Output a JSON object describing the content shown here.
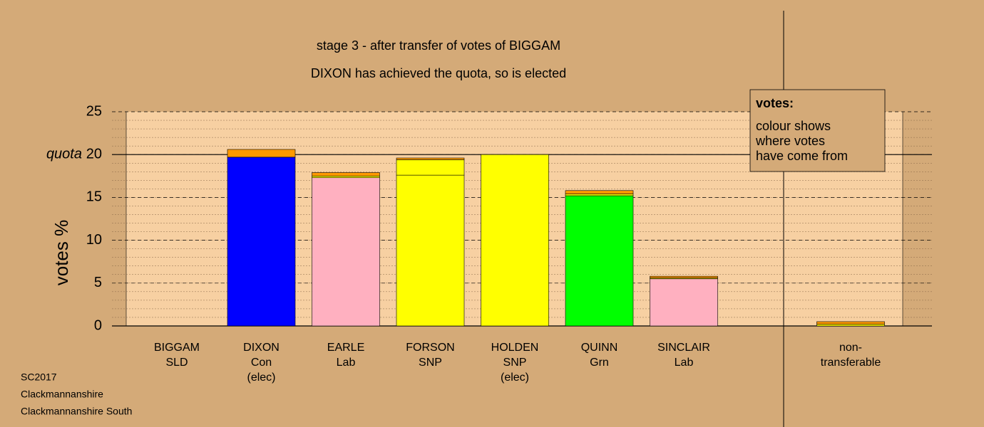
{
  "chart_data": {
    "type": "stacked-bar",
    "title": "stage 3 - after transfer of votes of BIGGAM",
    "subtitle": "DIXON has achieved the quota, so is elected",
    "y_label": "votes %",
    "categories": [
      [
        "BIGGAM",
        "SLD"
      ],
      [
        "DIXON",
        "Con",
        "(elec)"
      ],
      [
        "EARLE",
        "Lab"
      ],
      [
        "FORSON",
        "SNP"
      ],
      [
        "HOLDEN",
        "SNP",
        "(elec)"
      ],
      [
        "QUINN",
        "Grn"
      ],
      [
        "SINCLAIR",
        "Lab"
      ],
      [
        "non-",
        "transferable"
      ]
    ],
    "series": [
      {
        "colors": [
          "#ffa500",
          "#0000ff",
          "#ffb0c0",
          "#ffff00",
          "#ffff00",
          "#00ff00",
          "#ffb0c0",
          "#ffff00"
        ],
        "values": [
          0,
          19.7,
          17.3,
          17.6,
          20.0,
          15.2,
          5.5,
          0
        ]
      },
      {
        "color": "#ffff00",
        "values": [
          0,
          0,
          0.2,
          1.8,
          0,
          0.2,
          0.1,
          0.2
        ]
      },
      {
        "color": "#ff9900",
        "values": [
          0,
          0.9,
          0.4,
          0.2,
          0,
          0.4,
          0.2,
          0.3
        ]
      }
    ],
    "ylim": [
      0,
      25
    ],
    "yticks": [
      0,
      5,
      10,
      15,
      20,
      25
    ],
    "minor_step": 1,
    "quota": {
      "value": 20,
      "label": "quota"
    },
    "legend": {
      "title": "votes:",
      "lines": [
        "colour shows",
        "where votes",
        "have come from"
      ]
    },
    "footer": [
      "SC2017",
      "Clackmannanshire",
      "Clackmannanshire South"
    ]
  }
}
